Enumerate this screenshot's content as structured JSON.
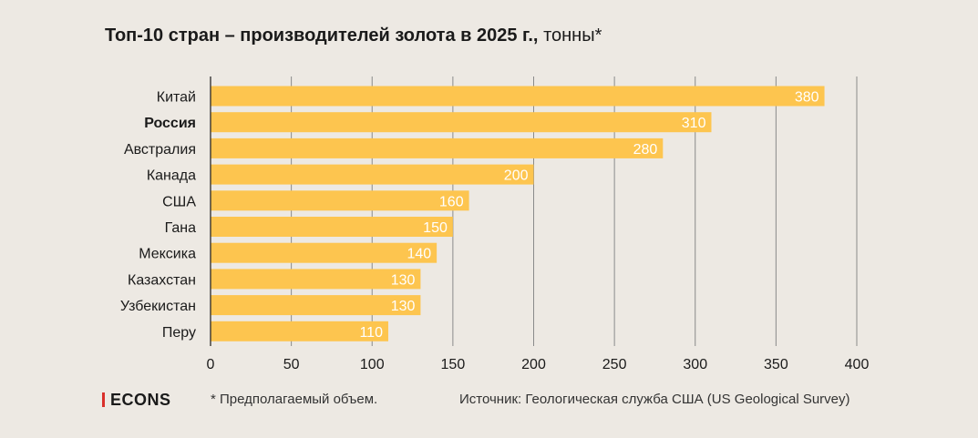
{
  "title": {
    "bold": "Топ-10 стран – производителей золота в 2025 г.,",
    "unit": "тонны*"
  },
  "colors": {
    "bar": "#fdc54f",
    "grid": "#8a8a8a",
    "axis": "#1a1a1a",
    "logo_accent": "#d9302b"
  },
  "chart_data": {
    "type": "bar",
    "orientation": "horizontal",
    "title": "Топ-10 стран – производителей золота в 2025 г., тонны*",
    "categories": [
      "Китай",
      "Россия",
      "Австралия",
      "Канада",
      "США",
      "Гана",
      "Мексика",
      "Казахстан",
      "Узбекистан",
      "Перу"
    ],
    "values": [
      380,
      310,
      280,
      200,
      160,
      150,
      140,
      130,
      130,
      110
    ],
    "highlight": "Россия",
    "xlim": [
      0,
      400
    ],
    "xticks": [
      0,
      50,
      100,
      150,
      200,
      250,
      300,
      350,
      400
    ],
    "xlabel": "",
    "ylabel": "",
    "grid": true
  },
  "footer": {
    "logo": "ECONS",
    "note": "* Предполагаемый объем.",
    "source": "Источник: Геологическая служба США (US Geological Survey)"
  }
}
